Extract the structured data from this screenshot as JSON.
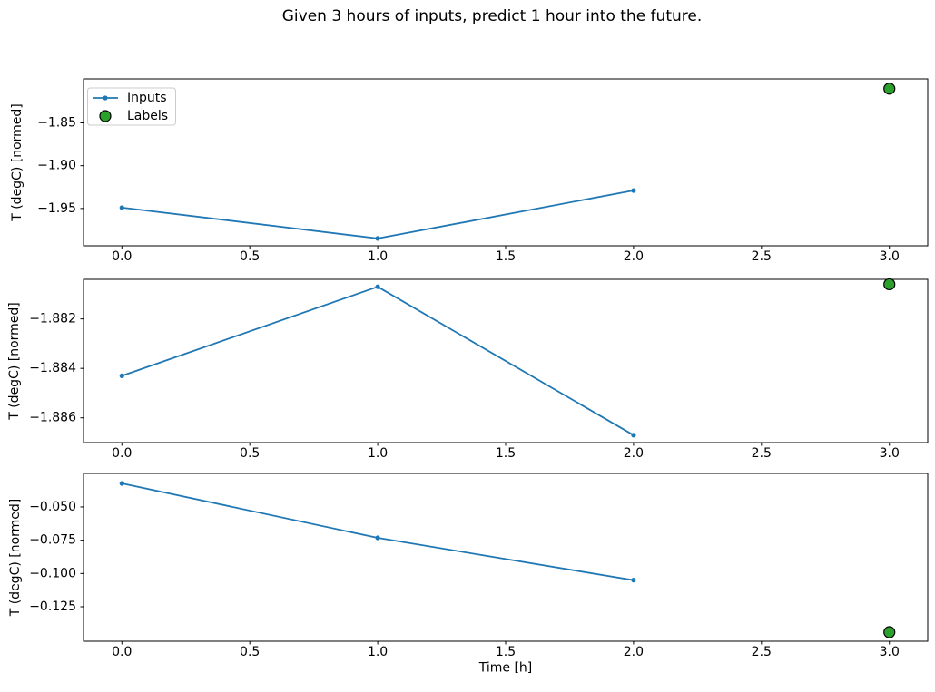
{
  "title": "Given 3 hours of inputs, predict 1 hour into the future.",
  "xlabel": "Time [h]",
  "ylabel": "T (degC) [normed]",
  "colors": {
    "inputs_line": "#1f77b4",
    "labels_fill": "#2ca02c",
    "labels_edge": "#000000",
    "spine": "#000000",
    "text": "#000000",
    "legend_border": "#cccccc",
    "background": "#ffffff"
  },
  "legend": {
    "location": "upper left of first subplot",
    "inputs_label": "Inputs",
    "labels_label": "Labels"
  },
  "xaxis": {
    "lim": [
      -0.15,
      3.15
    ],
    "tick_values": [
      0.0,
      0.5,
      1.0,
      1.5,
      2.0,
      2.5,
      3.0
    ],
    "tick_labels": [
      "0.0",
      "0.5",
      "1.0",
      "1.5",
      "2.0",
      "2.5",
      "3.0"
    ]
  },
  "chart_data": [
    {
      "type": "line",
      "ylabel": "T (degC) [normed]",
      "ylim": [
        -1.9936,
        -1.7986
      ],
      "yticks": {
        "values": [
          -1.85,
          -1.9,
          -1.95
        ],
        "labels": [
          "−1.85",
          "−1.90",
          "−1.95"
        ]
      },
      "series": [
        {
          "name": "Inputs",
          "type": "line",
          "x": [
            0,
            1,
            2
          ],
          "y": [
            -1.949,
            -1.985,
            -1.929
          ]
        },
        {
          "name": "Labels",
          "type": "scatter",
          "x": [
            3
          ],
          "y": [
            -1.81
          ]
        }
      ],
      "legend": true
    },
    {
      "type": "line",
      "ylabel": "T (degC) [normed]",
      "ylim": [
        -1.887,
        -1.8804
      ],
      "yticks": {
        "values": [
          -1.882,
          -1.884,
          -1.886
        ],
        "labels": [
          "−1.882",
          "−1.884",
          "−1.886"
        ]
      },
      "series": [
        {
          "name": "Inputs",
          "type": "line",
          "x": [
            0,
            1,
            2
          ],
          "y": [
            -1.8843,
            -1.8807,
            -1.8867
          ]
        },
        {
          "name": "Labels",
          "type": "scatter",
          "x": [
            3
          ],
          "y": [
            -1.8806
          ]
        }
      ],
      "legend": false
    },
    {
      "type": "line",
      "ylabel": "T (degC) [normed]",
      "ylim": [
        -0.1509,
        -0.0248
      ],
      "yticks": {
        "values": [
          -0.05,
          -0.075,
          -0.1,
          -0.125
        ],
        "labels": [
          "−0.050",
          "−0.075",
          "−0.100",
          "−0.125"
        ]
      },
      "series": [
        {
          "name": "Inputs",
          "type": "line",
          "x": [
            0,
            1,
            2
          ],
          "y": [
            -0.0323,
            -0.0732,
            -0.105
          ]
        },
        {
          "name": "Labels",
          "type": "scatter",
          "x": [
            3
          ],
          "y": [
            -0.1441
          ]
        }
      ],
      "legend": false
    }
  ]
}
